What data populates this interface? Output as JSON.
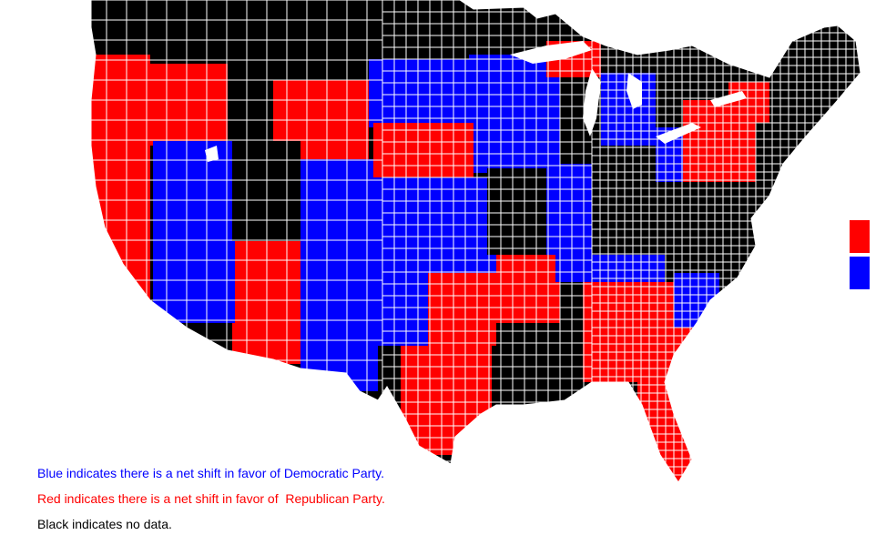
{
  "colors": {
    "democratic": "#0000ff",
    "republican": "#ff0000",
    "no_data": "#000000",
    "county_border": "#ffffff"
  },
  "legend": {
    "blue_text": "Blue indicates there is a net shift in favor of Democratic Party.",
    "red_text": "Red indicates there is a net shift in favor of  Republican Party.",
    "black_text": "Black indicates no data."
  }
}
